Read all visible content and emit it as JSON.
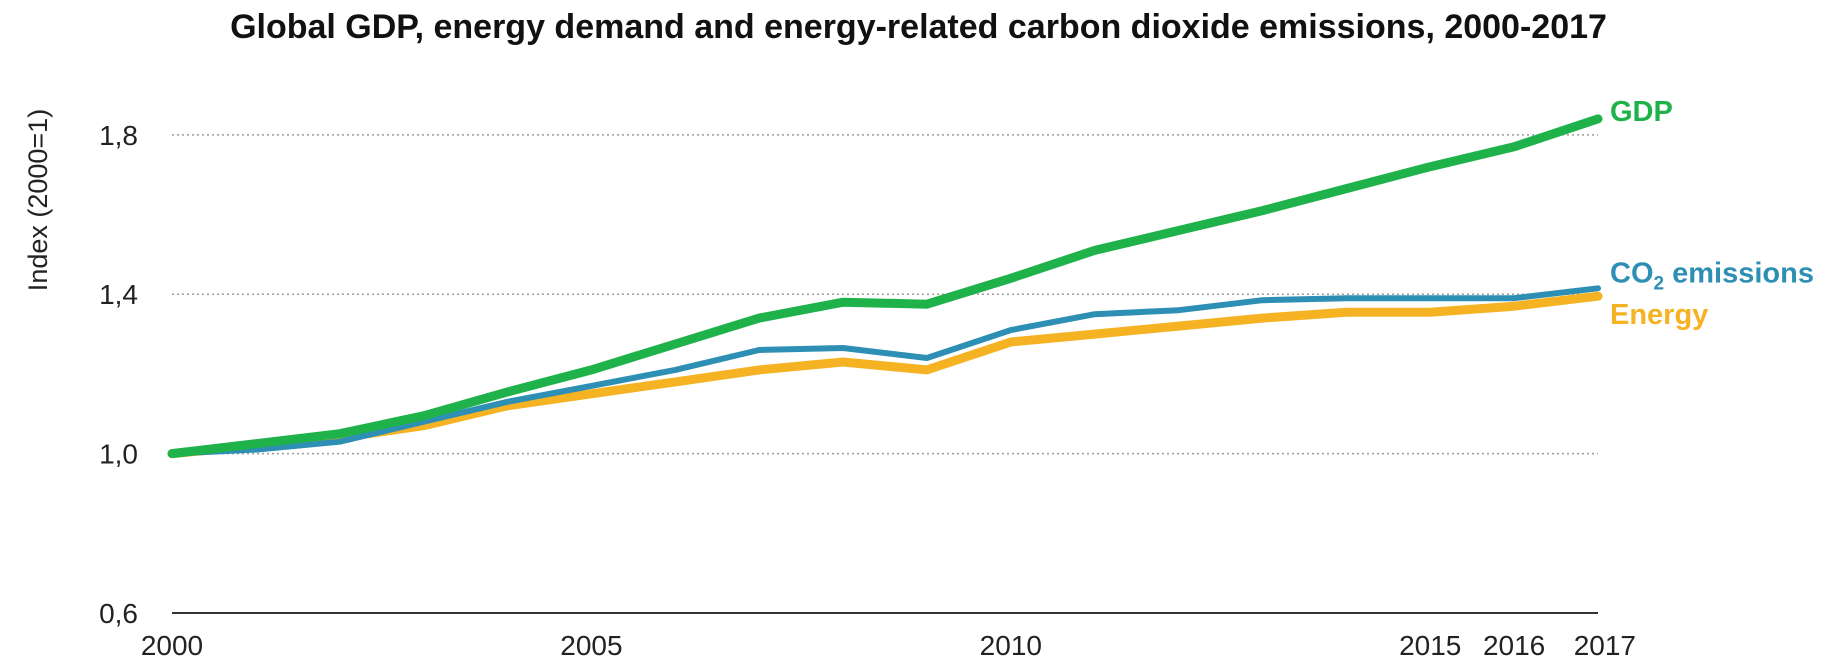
{
  "chart_data": {
    "type": "line",
    "title": "Global GDP, energy demand and energy-related carbon dioxide emissions, 2000-2017",
    "ylabel": "Index (2000=1)",
    "xlabel": "",
    "ylim": [
      0.6,
      1.9
    ],
    "yticks": [
      0.6,
      1.0,
      1.4,
      1.8
    ],
    "ytick_labels": [
      "0,6",
      "1,0",
      "1,4",
      "1,8"
    ],
    "xlim": [
      2000,
      2017
    ],
    "xticks": [
      2000,
      2005,
      2010,
      2015,
      2016,
      2017
    ],
    "xtick_labels": [
      "2000",
      "2005",
      "2010",
      "2015",
      "2016",
      "2017"
    ],
    "grid": "horizontal dotted",
    "x": [
      2000,
      2001,
      2002,
      2003,
      2004,
      2005,
      2006,
      2007,
      2008,
      2009,
      2010,
      2011,
      2012,
      2013,
      2014,
      2015,
      2016,
      2017
    ],
    "series": [
      {
        "name": "Energy",
        "color": "#F5B324",
        "values": [
          1.0,
          1.02,
          1.04,
          1.07,
          1.12,
          1.15,
          1.18,
          1.21,
          1.23,
          1.21,
          1.28,
          1.3,
          1.32,
          1.34,
          1.355,
          1.355,
          1.37,
          1.395
        ]
      },
      {
        "name": "CO₂ emissions",
        "label_main": "CO",
        "label_sub": "2",
        "label_rest": " emissions",
        "color": "#2E8FB4",
        "values": [
          1.0,
          1.01,
          1.03,
          1.08,
          1.13,
          1.17,
          1.21,
          1.26,
          1.265,
          1.24,
          1.31,
          1.35,
          1.36,
          1.385,
          1.39,
          1.39,
          1.39,
          1.415
        ]
      },
      {
        "name": "GDP",
        "color": "#1FB24A",
        "values": [
          1.0,
          1.025,
          1.05,
          1.095,
          1.155,
          1.21,
          1.275,
          1.34,
          1.38,
          1.375,
          1.44,
          1.51,
          1.56,
          1.61,
          1.665,
          1.72,
          1.77,
          1.84
        ]
      }
    ]
  }
}
